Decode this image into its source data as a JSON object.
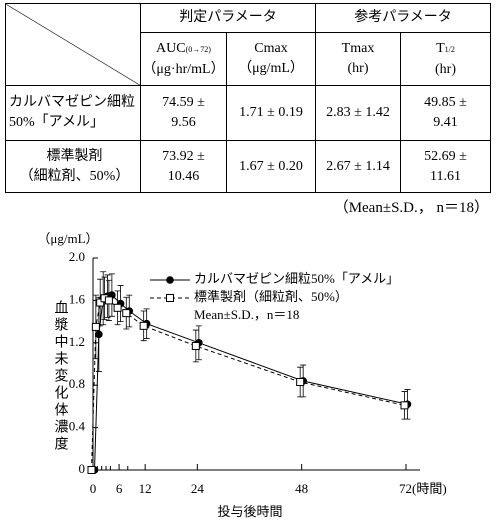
{
  "table": {
    "groups": [
      "判定パラメータ",
      "参考パラメータ"
    ],
    "columns": [
      {
        "main": "AUC",
        "sub": "(0→72)",
        "unit": "（μg·hr/mL）"
      },
      {
        "main": "Cmax",
        "unit": "（μg/mL）"
      },
      {
        "main": "Tmax",
        "unit": "(hr)"
      },
      {
        "main": "T",
        "sub": "1/2",
        "unit": "(hr)"
      }
    ],
    "rows": [
      {
        "label": [
          "カルバマゼピン細粒",
          "50%「アメル」"
        ],
        "cells": [
          [
            "74.59 ±",
            "9.56"
          ],
          [
            "1.71 ± 0.19"
          ],
          [
            "2.83 ± 1.42"
          ],
          [
            "49.85 ±",
            "9.41"
          ]
        ]
      },
      {
        "label": [
          "標準製剤",
          "（細粒剤、50%）"
        ],
        "cells": [
          [
            "73.92 ±",
            "10.46"
          ],
          [
            "1.67 ± 0.20"
          ],
          [
            "2.67 ± 1.14"
          ],
          [
            "52.69 ±",
            "11.61"
          ]
        ]
      }
    ],
    "note": "（Mean±S.D.， n＝18）"
  },
  "chart_data": {
    "type": "line",
    "y_unit": "（μg/mL）",
    "y_label": "血漿中未変化体濃度",
    "x_label": "投与後時間",
    "x": [
      0,
      1,
      2,
      3,
      4,
      6,
      8,
      12,
      24,
      48,
      72
    ],
    "xlim": [
      0,
      72
    ],
    "xticks": [
      0,
      6,
      12,
      24,
      48,
      {
        "value": 72,
        "label": "72(時間)"
      }
    ],
    "xminorticks": [
      1,
      2,
      3,
      4,
      8
    ],
    "ylim": [
      0,
      2
    ],
    "yticks": [
      0,
      0.4,
      0.8,
      1.2,
      1.6,
      {
        "value": 2,
        "label": "2.0"
      }
    ],
    "legend": "upper right",
    "annotation": "Mean±S.D.，n＝18",
    "series": [
      {
        "name": "カルバマゼピン細粒50%「アメル」",
        "color": "#000000",
        "marker": "circle",
        "line_style": "solid",
        "values": [
          0,
          1.28,
          1.62,
          1.64,
          1.65,
          1.57,
          1.5,
          1.38,
          1.2,
          0.84,
          0.62
        ],
        "errors": [
          0,
          0.35,
          0.25,
          0.2,
          0.2,
          0.17,
          0.15,
          0.14,
          0.16,
          0.15,
          0.14
        ]
      },
      {
        "name": "標準製剤（細粒剤、50%）",
        "color": "#000000",
        "marker": "square",
        "line_style": "dashed",
        "values": [
          0,
          1.35,
          1.58,
          1.62,
          1.6,
          1.53,
          1.48,
          1.36,
          1.17,
          0.83,
          0.61
        ],
        "errors": [
          0,
          0.3,
          0.22,
          0.2,
          0.19,
          0.16,
          0.15,
          0.14,
          0.15,
          0.14,
          0.13
        ]
      }
    ]
  }
}
